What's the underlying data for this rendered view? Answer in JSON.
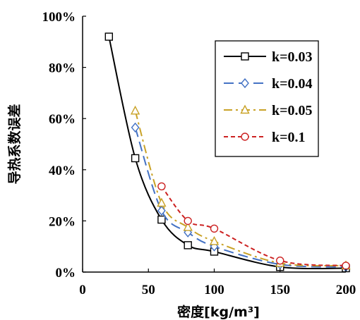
{
  "chart_data": {
    "type": "line",
    "xlabel": "密度[kg/m³]",
    "ylabel": "导热系数误差",
    "xlim": [
      0,
      200
    ],
    "ylim": [
      0,
      100
    ],
    "x_ticks": [
      "0",
      "50",
      "100",
      "150",
      "200"
    ],
    "y_ticks": [
      "0%",
      "20%",
      "40%",
      "60%",
      "80%",
      "100%"
    ],
    "grid": false,
    "legend_position": "top-right",
    "series": [
      {
        "name": "k=0.03",
        "color": "#000000",
        "dash": "solid",
        "marker": "square",
        "x": [
          20,
          40,
          60,
          80,
          100,
          150,
          200
        ],
        "y": [
          92,
          44.5,
          20.5,
          10.5,
          8,
          2,
          1.5
        ]
      },
      {
        "name": "k=0.04",
        "color": "#4472C4",
        "dash": "long-dash",
        "marker": "diamond",
        "x": [
          40,
          60,
          80,
          100,
          150,
          200
        ],
        "y": [
          56.5,
          24,
          15.5,
          10,
          3,
          2
        ]
      },
      {
        "name": "k=0.05",
        "color": "#C9A227",
        "dash": "dash-dot",
        "marker": "triangle",
        "x": [
          40,
          60,
          80,
          100,
          150,
          200
        ],
        "y": [
          63,
          27,
          17.5,
          12,
          3.5,
          2.5
        ]
      },
      {
        "name": "k=0.1",
        "color": "#CC2222",
        "dash": "dotted",
        "marker": "circle",
        "x": [
          60,
          80,
          100,
          150,
          200
        ],
        "y": [
          33.5,
          20,
          17,
          4.5,
          2.5
        ]
      }
    ]
  }
}
